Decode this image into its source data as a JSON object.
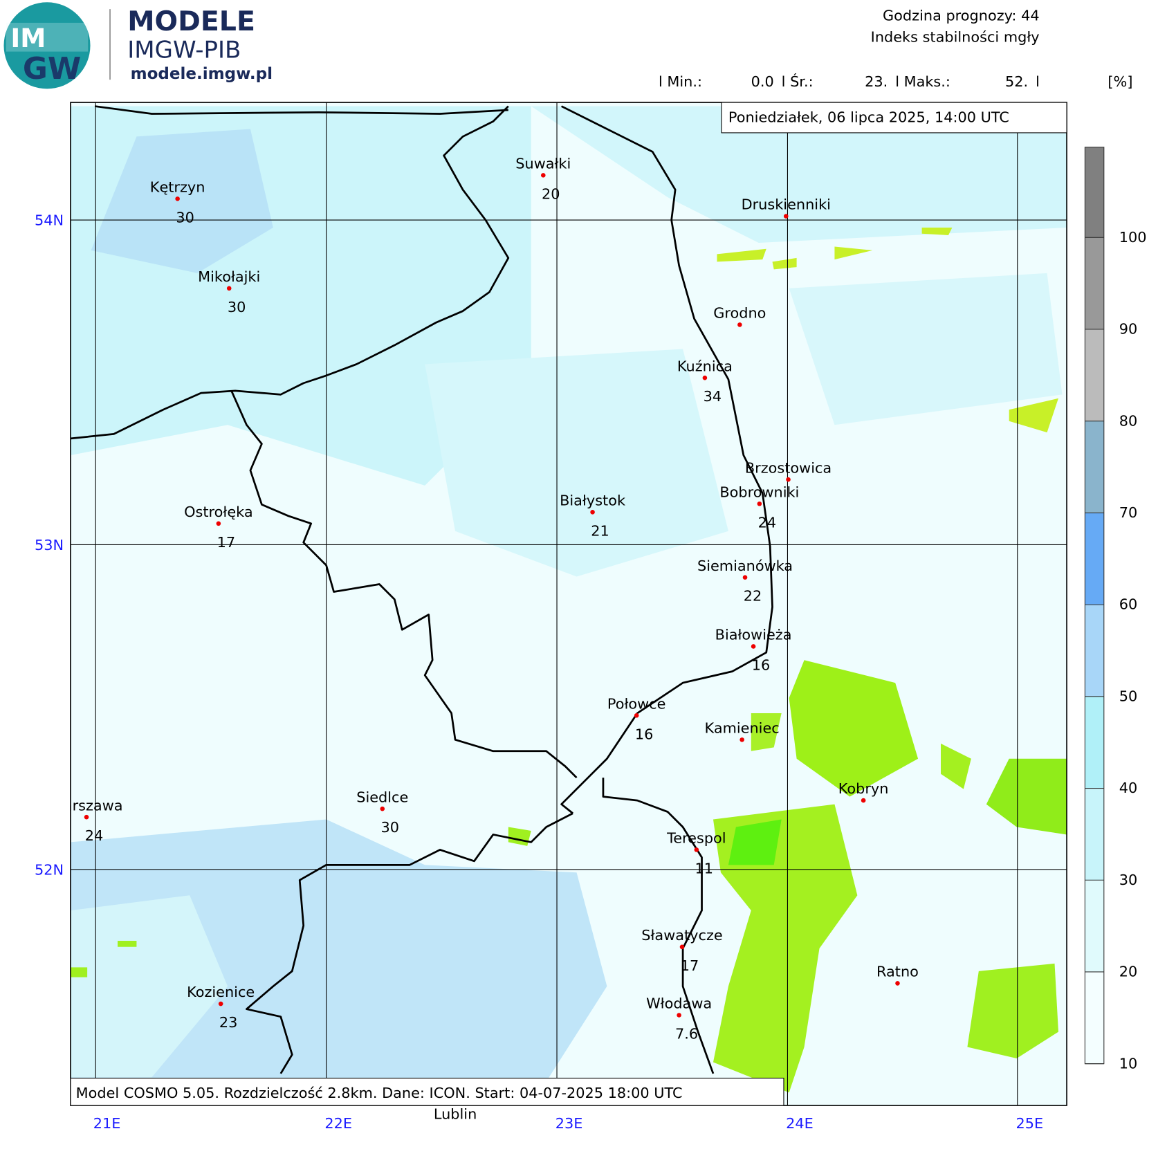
{
  "header": {
    "logo": [
      "IM",
      "GW"
    ],
    "brand": "MODELE",
    "brand_sub": "IMGW-PIB",
    "url": "modele.imgw.pl",
    "forecast_hour": "Godzina prognozy: 44",
    "product": "Indeks stabilności mgły"
  },
  "stats": {
    "min_label": "l Min.:",
    "min": "0.0",
    "mean_label": "l Śr.:",
    "mean": "23.",
    "max_label": "l Maks.:",
    "max": "52.",
    "end": "l",
    "unit": "[%]"
  },
  "map": {
    "date": "Poniedziałek, 06 lipca 2025, 14:00 UTC",
    "footer": "Model COSMO 5.05. Rozdzielczość 2.8km. Dane: ICON. Start: 04-07-2025 18:00 UTC",
    "outside_label": "Lublin",
    "lat_labels": [
      "54N",
      "53N",
      "52N"
    ],
    "lon_labels": [
      "21E",
      "22E",
      "23E",
      "24E",
      "25E"
    ],
    "cities": [
      {
        "name": "Kętrzyn",
        "value": 30
      },
      {
        "name": "Mikołajki",
        "value": 30
      },
      {
        "name": "Suwałki",
        "value": 20
      },
      {
        "name": "Druskienniki"
      },
      {
        "name": "Grodno"
      },
      {
        "name": "Kuźnica",
        "value": 34
      },
      {
        "name": "Brzostowica"
      },
      {
        "name": "Bobrowniki",
        "value": 24
      },
      {
        "name": "Białystok",
        "value": 21
      },
      {
        "name": "Ostrołęka",
        "value": 17
      },
      {
        "name": "Siemianówka",
        "value": 22
      },
      {
        "name": "Białowieża",
        "value": 16
      },
      {
        "name": "Połowce",
        "value": 16
      },
      {
        "name": "Kamieniec"
      },
      {
        "name": "Kobryn"
      },
      {
        "name": "Warszawa",
        "value": 24
      },
      {
        "name": "Siedlce",
        "value": 30
      },
      {
        "name": "Terespol",
        "value": 11
      },
      {
        "name": "Sławatycze",
        "value": 17
      },
      {
        "name": "Ratno"
      },
      {
        "name": "Kozienice",
        "value": 23
      },
      {
        "name": "Włodawa",
        "value": 7.6
      }
    ]
  },
  "legend": {
    "ticks": [
      10,
      20,
      30,
      40,
      50,
      60,
      70,
      80,
      90,
      100
    ]
  }
}
